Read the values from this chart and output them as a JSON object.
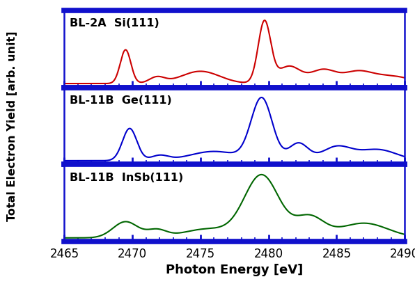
{
  "xlabel": "Photon Energy [eV]",
  "ylabel": "Total Electron Yield [arb. unit]",
  "xlim": [
    2465,
    2490
  ],
  "xticks": [
    2465,
    2470,
    2475,
    2480,
    2485,
    2490
  ],
  "panel_labels": [
    "BL-2A  Si(111)",
    "BL-11B  Ge(111)",
    "BL-11B  InSb(111)"
  ],
  "colors": [
    "#cc0000",
    "#0000cc",
    "#006600"
  ],
  "border_color": "#1010cc",
  "bg_color": "#ffffff",
  "figsize": [
    5.96,
    4.21
  ],
  "dpi": 100
}
